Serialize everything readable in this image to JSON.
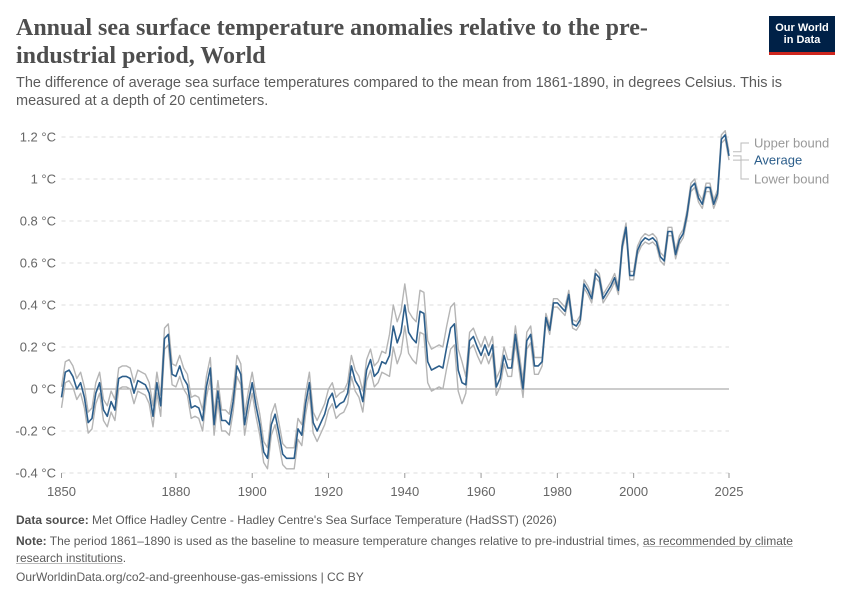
{
  "header": {
    "title": "Annual sea surface temperature anomalies relative to the pre-industrial period, World",
    "subtitle": "The difference of average sea surface temperatures compared to the mean from 1861-1890, in degrees Celsius. This is measured at a depth of 20 centimeters.",
    "logo_text": "Our World in Data"
  },
  "footer": {
    "source_label": "Data source:",
    "source_text": "Met Office Hadley Centre - Hadley Centre's Sea Surface Temperature (HadSST) (2026)",
    "note_label": "Note:",
    "note_text": "The period 1861–1890 is used as the baseline to measure temperature changes relative to pre-industrial times,",
    "note_link": "as recommended by climate research institutions",
    "note_end": ".",
    "url": "OurWorldinData.org/co2-and-greenhouse-gas-emissions | CC BY"
  },
  "colors": {
    "average": "#2c5e8b",
    "bounds": "#b5b5b5",
    "grid": "#dddddd",
    "zero": "#999999",
    "logo_bg": "#002147",
    "logo_accent": "#ce261e"
  },
  "chart_data": {
    "type": "line",
    "xlim": [
      1850,
      2025
    ],
    "ylim": [
      -0.4,
      1.2
    ],
    "grid": true,
    "legend_placement": "right-end-labels",
    "x_ticks": [
      "1850",
      "1880",
      "1900",
      "1920",
      "1940",
      "1960",
      "1980",
      "2000",
      "2025"
    ],
    "y_ticks": [
      {
        "value": -0.4,
        "label": "-0.4 °C"
      },
      {
        "value": -0.2,
        "label": "-0.2 °C"
      },
      {
        "value": 0,
        "label": "0 °C"
      },
      {
        "value": 0.2,
        "label": "0.2 °C"
      },
      {
        "value": 0.4,
        "label": "0.4 °C"
      },
      {
        "value": 0.6,
        "label": "0.6 °C"
      },
      {
        "value": 0.8,
        "label": "0.8 °C"
      },
      {
        "value": 1,
        "label": "1 °C"
      },
      {
        "value": 1.2,
        "label": "1.2 °C"
      }
    ],
    "series": [
      {
        "name": "Upper bound",
        "values": [
          0.01,
          0.13,
          0.14,
          0.11,
          0.05,
          0.08,
          0.01,
          -0.11,
          -0.09,
          0.03,
          0.08,
          -0.05,
          -0.08,
          -0.01,
          -0.05,
          0.1,
          0.11,
          0.11,
          0.1,
          0.03,
          0.09,
          0.08,
          0.07,
          0.03,
          -0.08,
          0.08,
          -0.03,
          0.29,
          0.31,
          0.12,
          0.11,
          0.16,
          0.1,
          0.07,
          -0.04,
          -0.03,
          -0.04,
          -0.1,
          0.06,
          0.15,
          -0.12,
          0.04,
          -0.1,
          -0.1,
          -0.12,
          -0.01,
          0.16,
          0.12,
          -0.12,
          -0.01,
          0.08,
          -0.03,
          -0.12,
          -0.25,
          -0.28,
          -0.12,
          -0.07,
          -0.16,
          -0.26,
          -0.28,
          -0.28,
          -0.28,
          -0.14,
          -0.17,
          -0.02,
          0.08,
          -0.11,
          -0.15,
          -0.11,
          -0.07,
          0.0,
          0.03,
          -0.04,
          -0.02,
          -0.01,
          0.03,
          0.16,
          0.09,
          0.06,
          -0.01,
          0.14,
          0.19,
          0.11,
          0.13,
          0.18,
          0.17,
          0.26,
          0.4,
          0.32,
          0.37,
          0.5,
          0.37,
          0.34,
          0.32,
          0.47,
          0.46,
          0.23,
          0.19,
          0.2,
          0.21,
          0.2,
          0.3,
          0.39,
          0.41,
          0.19,
          0.13,
          0.06,
          0.27,
          0.29,
          0.24,
          0.2,
          0.25,
          0.2,
          0.25,
          0.05,
          0.09,
          0.2,
          0.14,
          0.14,
          0.3,
          0.17,
          0.04,
          0.27,
          0.3,
          0.15,
          0.15,
          0.15,
          0.36,
          0.3,
          0.43,
          0.43,
          0.41,
          0.39,
          0.47,
          0.33,
          0.32,
          0.35,
          0.52,
          0.49,
          0.45,
          0.57,
          0.55,
          0.45,
          0.48,
          0.51,
          0.55,
          0.49,
          0.7,
          0.79,
          0.56,
          0.56,
          0.68,
          0.72,
          0.74,
          0.73,
          0.74,
          0.72,
          0.65,
          0.63,
          0.77,
          0.77,
          0.66,
          0.73,
          0.76,
          0.85,
          0.98,
          1.0,
          0.93,
          0.9,
          0.98,
          0.98,
          0.9,
          0.95,
          1.21,
          1.23,
          1.13
        ]
      },
      {
        "name": "Average",
        "values": [
          -0.04,
          0.08,
          0.09,
          0.06,
          0.0,
          0.03,
          -0.04,
          -0.16,
          -0.14,
          -0.02,
          0.03,
          -0.1,
          -0.13,
          -0.06,
          -0.1,
          0.05,
          0.06,
          0.06,
          0.05,
          -0.02,
          0.04,
          0.03,
          0.02,
          -0.02,
          -0.13,
          0.03,
          -0.08,
          0.24,
          0.26,
          0.07,
          0.06,
          0.11,
          0.05,
          0.02,
          -0.09,
          -0.08,
          -0.09,
          -0.15,
          0.01,
          0.1,
          -0.17,
          -0.01,
          -0.15,
          -0.15,
          -0.17,
          -0.06,
          0.11,
          0.07,
          -0.17,
          -0.06,
          0.03,
          -0.08,
          -0.17,
          -0.3,
          -0.33,
          -0.17,
          -0.12,
          -0.21,
          -0.31,
          -0.33,
          -0.33,
          -0.33,
          -0.19,
          -0.22,
          -0.07,
          0.03,
          -0.16,
          -0.2,
          -0.16,
          -0.12,
          -0.05,
          -0.02,
          -0.09,
          -0.07,
          -0.06,
          -0.02,
          0.11,
          0.04,
          0.01,
          -0.06,
          0.09,
          0.14,
          0.06,
          0.08,
          0.13,
          0.12,
          0.16,
          0.3,
          0.22,
          0.27,
          0.4,
          0.27,
          0.24,
          0.22,
          0.37,
          0.36,
          0.13,
          0.09,
          0.1,
          0.11,
          0.1,
          0.2,
          0.29,
          0.31,
          0.09,
          0.03,
          0.02,
          0.23,
          0.25,
          0.2,
          0.16,
          0.21,
          0.16,
          0.21,
          0.01,
          0.05,
          0.16,
          0.1,
          0.1,
          0.26,
          0.13,
          0.0,
          0.23,
          0.26,
          0.11,
          0.11,
          0.13,
          0.34,
          0.28,
          0.41,
          0.41,
          0.39,
          0.37,
          0.45,
          0.31,
          0.3,
          0.33,
          0.5,
          0.47,
          0.43,
          0.55,
          0.53,
          0.43,
          0.46,
          0.49,
          0.53,
          0.47,
          0.68,
          0.77,
          0.54,
          0.54,
          0.66,
          0.7,
          0.72,
          0.71,
          0.72,
          0.7,
          0.63,
          0.61,
          0.75,
          0.75,
          0.64,
          0.71,
          0.74,
          0.83,
          0.96,
          0.98,
          0.91,
          0.88,
          0.96,
          0.96,
          0.88,
          0.93,
          1.19,
          1.21,
          1.11
        ]
      },
      {
        "name": "Lower bound",
        "values": [
          -0.09,
          0.03,
          0.04,
          0.01,
          -0.05,
          -0.02,
          -0.09,
          -0.21,
          -0.19,
          -0.07,
          -0.02,
          -0.15,
          -0.18,
          -0.11,
          -0.15,
          0.0,
          0.01,
          0.01,
          0.0,
          -0.07,
          -0.01,
          -0.02,
          -0.03,
          -0.07,
          -0.18,
          -0.02,
          -0.13,
          0.19,
          0.21,
          0.02,
          0.01,
          0.06,
          0.0,
          -0.03,
          -0.14,
          -0.13,
          -0.14,
          -0.2,
          -0.04,
          0.05,
          -0.22,
          -0.06,
          -0.2,
          -0.2,
          -0.22,
          -0.11,
          0.06,
          0.02,
          -0.22,
          -0.11,
          -0.02,
          -0.13,
          -0.22,
          -0.35,
          -0.38,
          -0.22,
          -0.17,
          -0.26,
          -0.36,
          -0.38,
          -0.38,
          -0.38,
          -0.24,
          -0.27,
          -0.12,
          -0.02,
          -0.21,
          -0.25,
          -0.21,
          -0.17,
          -0.1,
          -0.07,
          -0.14,
          -0.12,
          -0.11,
          -0.07,
          0.06,
          -0.01,
          -0.04,
          -0.11,
          0.04,
          0.09,
          0.01,
          0.03,
          0.08,
          0.07,
          0.06,
          0.2,
          0.12,
          0.17,
          0.3,
          0.17,
          0.14,
          0.12,
          0.27,
          0.26,
          0.03,
          -0.01,
          0.0,
          0.01,
          0.0,
          0.1,
          0.19,
          0.21,
          -0.01,
          -0.07,
          -0.02,
          0.19,
          0.21,
          0.16,
          0.12,
          0.17,
          0.12,
          0.17,
          -0.03,
          0.01,
          0.12,
          0.06,
          0.06,
          0.22,
          0.09,
          -0.04,
          0.19,
          0.22,
          0.07,
          0.07,
          0.11,
          0.32,
          0.26,
          0.39,
          0.39,
          0.37,
          0.35,
          0.43,
          0.29,
          0.28,
          0.31,
          0.48,
          0.45,
          0.41,
          0.53,
          0.51,
          0.41,
          0.44,
          0.47,
          0.51,
          0.45,
          0.66,
          0.75,
          0.52,
          0.52,
          0.64,
          0.68,
          0.7,
          0.69,
          0.7,
          0.68,
          0.61,
          0.59,
          0.73,
          0.73,
          0.62,
          0.69,
          0.72,
          0.81,
          0.94,
          0.96,
          0.89,
          0.86,
          0.94,
          0.94,
          0.86,
          0.91,
          1.17,
          1.19,
          1.09
        ]
      }
    ]
  }
}
